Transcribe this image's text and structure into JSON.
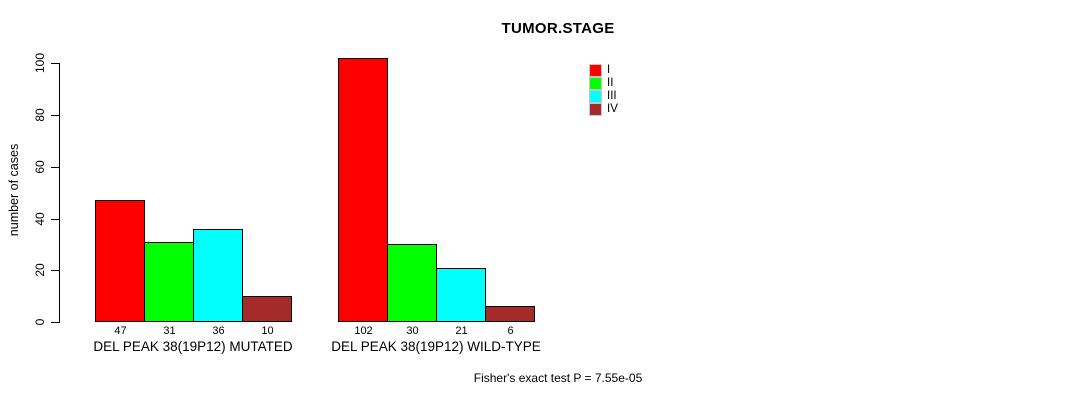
{
  "chart_data": {
    "type": "bar",
    "title": "TUMOR.STAGE",
    "ylabel": "number of cases",
    "xlabel": "",
    "ylim": [
      0,
      100
    ],
    "yticks": [
      0,
      20,
      40,
      60,
      80,
      100
    ],
    "grid": false,
    "legend_position": "top-right",
    "categories": [
      "DEL PEAK 38(19P12) MUTATED",
      "DEL PEAK 38(19P12) WILD-TYPE"
    ],
    "series": [
      {
        "name": "I",
        "color": "#ff0000",
        "values": [
          47,
          102
        ]
      },
      {
        "name": "II",
        "color": "#00ff00",
        "values": [
          31,
          30
        ]
      },
      {
        "name": "III",
        "color": "#00ffff",
        "values": [
          36,
          21
        ]
      },
      {
        "name": "IV",
        "color": "#a52a2a",
        "values": [
          10,
          6
        ]
      }
    ],
    "bar_value_labels": [
      [
        47,
        31,
        36,
        10
      ],
      [
        102,
        30,
        21,
        6
      ]
    ],
    "annotation": "Fisher's exact test P = 7.55e-05",
    "axis_color": "#000000",
    "background_color": "#ffffff"
  }
}
